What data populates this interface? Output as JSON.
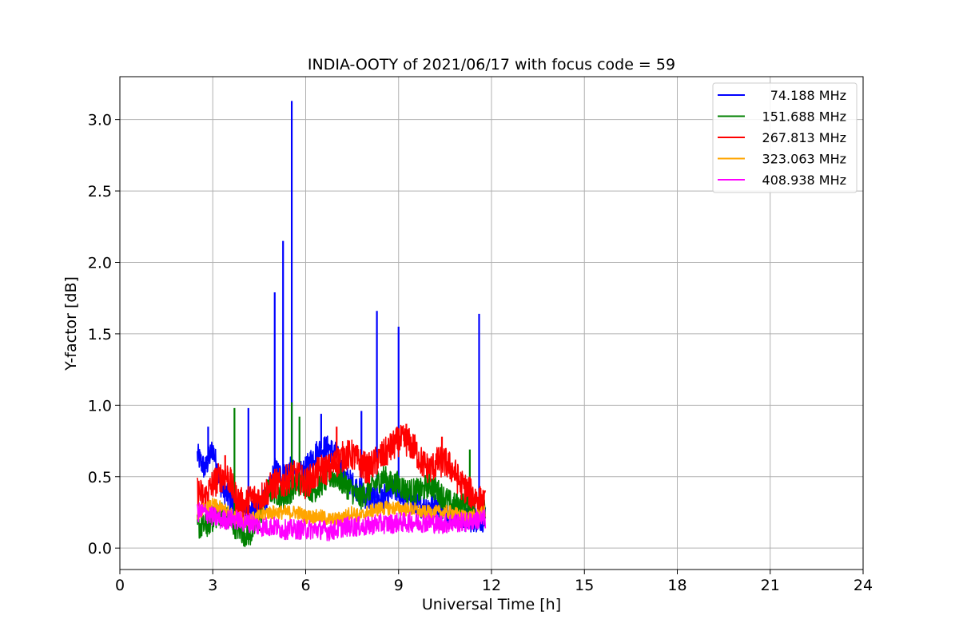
{
  "chart_data": {
    "type": "line",
    "title": "INDIA-OOTY of 2021/06/17 with focus code = 59",
    "xlabel": "Universal Time [h]",
    "ylabel": "Y-factor [dB]",
    "xlim": [
      0,
      24
    ],
    "ylim": [
      -0.15,
      3.3
    ],
    "xticks": [
      0,
      3,
      6,
      9,
      12,
      15,
      18,
      21,
      24
    ],
    "xtick_labels": [
      "0",
      "3",
      "6",
      "9",
      "12",
      "15",
      "18",
      "21",
      "24"
    ],
    "yticks": [
      0.0,
      0.5,
      1.0,
      1.5,
      2.0,
      2.5,
      3.0
    ],
    "ytick_labels": [
      "0.0",
      "0.5",
      "1.0",
      "1.5",
      "2.0",
      "2.5",
      "3.0"
    ],
    "grid": true,
    "legend_position": "top-right",
    "series": [
      {
        "name": "74.188 MHz",
        "color": "#0000ff",
        "x": [
          2.5,
          2.75,
          3.0,
          3.25,
          3.5,
          3.75,
          4.0,
          4.25,
          4.5,
          4.75,
          5.0,
          5.25,
          5.5,
          5.75,
          6.0,
          6.25,
          6.5,
          6.75,
          7.0,
          7.25,
          7.5,
          7.75,
          8.0,
          8.25,
          8.5,
          8.75,
          9.0,
          9.25,
          9.5,
          9.75,
          10.0,
          10.25,
          10.5,
          10.75,
          11.0,
          11.25,
          11.5,
          11.8
        ],
        "y": [
          0.65,
          0.55,
          0.7,
          0.45,
          0.35,
          0.3,
          0.25,
          0.25,
          0.3,
          0.35,
          0.55,
          0.5,
          0.55,
          0.5,
          0.55,
          0.65,
          0.7,
          0.7,
          0.65,
          0.5,
          0.45,
          0.4,
          0.35,
          0.35,
          0.35,
          0.4,
          0.4,
          0.35,
          0.3,
          0.3,
          0.3,
          0.3,
          0.25,
          0.25,
          0.2,
          0.2,
          0.2,
          0.2
        ],
        "spikes": [
          {
            "x": 2.85,
            "y": 0.85
          },
          {
            "x": 4.15,
            "y": 0.98
          },
          {
            "x": 5.0,
            "y": 1.79
          },
          {
            "x": 5.27,
            "y": 2.15
          },
          {
            "x": 5.55,
            "y": 3.13
          },
          {
            "x": 6.5,
            "y": 0.94
          },
          {
            "x": 7.8,
            "y": 0.96
          },
          {
            "x": 8.3,
            "y": 1.66
          },
          {
            "x": 9.0,
            "y": 1.55
          },
          {
            "x": 11.6,
            "y": 1.64
          }
        ]
      },
      {
        "name": "151.688 MHz",
        "color": "#008000",
        "x": [
          2.5,
          2.75,
          3.0,
          3.25,
          3.5,
          3.75,
          4.0,
          4.25,
          4.5,
          4.75,
          5.0,
          5.25,
          5.5,
          5.75,
          6.0,
          6.25,
          6.5,
          6.75,
          7.0,
          7.25,
          7.5,
          7.75,
          8.0,
          8.25,
          8.5,
          8.75,
          9.0,
          9.25,
          9.5,
          9.75,
          10.0,
          10.25,
          10.5,
          10.75,
          11.0,
          11.25,
          11.5,
          11.8
        ],
        "y": [
          0.15,
          0.15,
          0.2,
          0.25,
          0.2,
          0.15,
          0.1,
          0.1,
          0.2,
          0.4,
          0.4,
          0.35,
          0.4,
          0.45,
          0.45,
          0.4,
          0.45,
          0.5,
          0.5,
          0.45,
          0.4,
          0.35,
          0.4,
          0.45,
          0.5,
          0.45,
          0.45,
          0.4,
          0.4,
          0.4,
          0.45,
          0.4,
          0.35,
          0.3,
          0.3,
          0.3,
          0.25,
          0.25
        ],
        "spikes": [
          {
            "x": 3.7,
            "y": 0.98
          },
          {
            "x": 5.55,
            "y": 1.02
          },
          {
            "x": 5.8,
            "y": 0.92
          },
          {
            "x": 11.3,
            "y": 0.69
          }
        ]
      },
      {
        "name": "267.813 MHz",
        "color": "#ff0000",
        "x": [
          2.5,
          2.75,
          3.0,
          3.25,
          3.5,
          3.75,
          4.0,
          4.25,
          4.5,
          4.75,
          5.0,
          5.25,
          5.5,
          5.75,
          6.0,
          6.25,
          6.5,
          6.75,
          7.0,
          7.25,
          7.5,
          7.75,
          8.0,
          8.25,
          8.5,
          8.75,
          9.0,
          9.25,
          9.5,
          9.75,
          10.0,
          10.25,
          10.5,
          10.75,
          11.0,
          11.25,
          11.5,
          11.8
        ],
        "y": [
          0.4,
          0.35,
          0.45,
          0.5,
          0.5,
          0.35,
          0.3,
          0.35,
          0.35,
          0.4,
          0.45,
          0.45,
          0.5,
          0.5,
          0.45,
          0.5,
          0.55,
          0.55,
          0.6,
          0.65,
          0.65,
          0.6,
          0.55,
          0.6,
          0.65,
          0.7,
          0.75,
          0.75,
          0.7,
          0.6,
          0.55,
          0.6,
          0.6,
          0.55,
          0.45,
          0.4,
          0.35,
          0.3
        ],
        "spikes": [
          {
            "x": 3.4,
            "y": 0.65
          },
          {
            "x": 7.0,
            "y": 0.85
          },
          {
            "x": 9.25,
            "y": 0.87
          },
          {
            "x": 10.4,
            "y": 0.78
          }
        ]
      },
      {
        "name": "323.063 MHz",
        "color": "#ffa500",
        "x": [
          2.5,
          2.75,
          3.0,
          3.25,
          3.5,
          3.75,
          4.0,
          4.25,
          4.5,
          4.75,
          5.0,
          5.25,
          5.5,
          5.75,
          6.0,
          6.25,
          6.5,
          6.75,
          7.0,
          7.25,
          7.5,
          7.75,
          8.0,
          8.25,
          8.5,
          8.75,
          9.0,
          9.25,
          9.5,
          9.75,
          10.0,
          10.25,
          10.5,
          10.75,
          11.0,
          11.25,
          11.5,
          11.8
        ],
        "y": [
          0.25,
          0.27,
          0.3,
          0.28,
          0.25,
          0.22,
          0.2,
          0.2,
          0.22,
          0.25,
          0.25,
          0.25,
          0.25,
          0.25,
          0.22,
          0.22,
          0.22,
          0.2,
          0.2,
          0.22,
          0.25,
          0.22,
          0.25,
          0.27,
          0.28,
          0.28,
          0.28,
          0.27,
          0.27,
          0.25,
          0.25,
          0.25,
          0.25,
          0.25,
          0.22,
          0.22,
          0.22,
          0.25
        ],
        "spikes": []
      },
      {
        "name": "408.938 MHz",
        "color": "#ff00ff",
        "x": [
          2.5,
          2.75,
          3.0,
          3.25,
          3.5,
          3.75,
          4.0,
          4.25,
          4.5,
          4.75,
          5.0,
          5.25,
          5.5,
          5.75,
          6.0,
          6.25,
          6.5,
          6.75,
          7.0,
          7.25,
          7.5,
          7.75,
          8.0,
          8.25,
          8.5,
          8.75,
          9.0,
          9.25,
          9.5,
          9.75,
          10.0,
          10.25,
          10.5,
          10.75,
          11.0,
          11.25,
          11.5,
          11.8
        ],
        "y": [
          0.25,
          0.25,
          0.22,
          0.2,
          0.2,
          0.2,
          0.18,
          0.18,
          0.15,
          0.15,
          0.15,
          0.13,
          0.13,
          0.13,
          0.13,
          0.13,
          0.13,
          0.12,
          0.13,
          0.15,
          0.15,
          0.15,
          0.15,
          0.17,
          0.17,
          0.17,
          0.18,
          0.18,
          0.18,
          0.18,
          0.18,
          0.17,
          0.17,
          0.18,
          0.18,
          0.18,
          0.2,
          0.2
        ],
        "spikes": []
      }
    ]
  }
}
